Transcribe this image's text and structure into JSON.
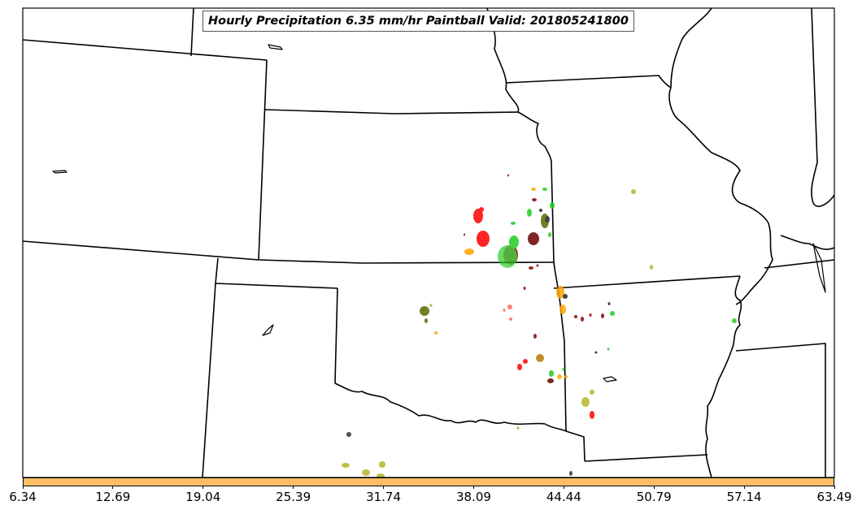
{
  "title": "Hourly Precipitation 6.35 mm/hr Paintball Valid: 201805241800",
  "colorbar": {
    "color": "#ffbf66",
    "ticks": [
      "6.34",
      "12.69",
      "19.04",
      "25.39",
      "31.74",
      "38.09",
      "44.44",
      "50.79",
      "57.14",
      "63.49"
    ]
  },
  "map": {
    "features": [
      "state-boundaries",
      "precipitation-paintball-blobs"
    ],
    "blob_colors": [
      "#ff0000",
      "#22cc22",
      "#ffa500",
      "#6b0000",
      "#5a6a00",
      "#b5b52a",
      "#222222",
      "#ff6666"
    ]
  }
}
